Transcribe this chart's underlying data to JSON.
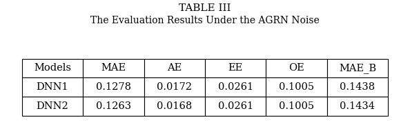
{
  "title_line1": "TABLE III",
  "title_line2": "The Evaluation Results Under the AGRN Noise",
  "columns": [
    "Models",
    "MAE",
    "AE",
    "EE",
    "OE",
    "MAE_B"
  ],
  "rows": [
    [
      "DNN1",
      "0.1278",
      "0.0172",
      "0.0261",
      "0.1005",
      "0.1438"
    ],
    [
      "DNN2",
      "0.1263",
      "0.0168",
      "0.0261",
      "0.1005",
      "0.1434"
    ]
  ],
  "background_color": "#ffffff",
  "text_color": "#000000",
  "title_fontsize": 11,
  "subtitle_fontsize": 10,
  "table_fontsize": 10.5
}
